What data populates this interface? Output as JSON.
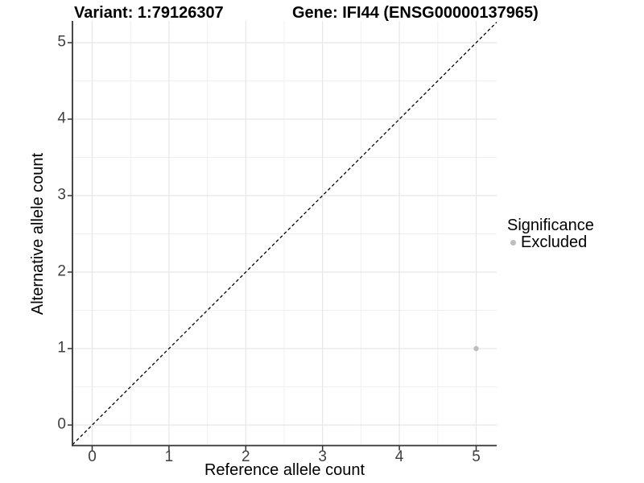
{
  "chart_data": {
    "type": "scatter",
    "titles": [
      "Variant: 1:79126307",
      "Gene: IFI44 (ENSG00000137965)"
    ],
    "xlabel": "Reference allele count",
    "ylabel": "Alternative allele count",
    "xticks": [
      0,
      1,
      2,
      3,
      4,
      5
    ],
    "yticks": [
      0,
      1,
      2,
      3,
      4,
      5
    ],
    "xlim": [
      -0.26,
      5.27
    ],
    "ylim": [
      -0.26,
      5.28
    ],
    "grid": "major and minor (0.5 step) light gray gridlines on white panel",
    "identity_line": {
      "slope": 1,
      "intercept": 0,
      "style": "dashed",
      "color": "#000000"
    },
    "series": [
      {
        "name": "Excluded",
        "color": "#bdbdbd",
        "point_radius": 3.2,
        "points": [
          [
            5,
            1
          ]
        ]
      }
    ],
    "legend": {
      "title": "Significance",
      "position": "right",
      "entries": [
        {
          "label": "Excluded",
          "color": "#bdbdbd"
        }
      ]
    }
  },
  "style_colors": {
    "grid_major": "#e6e6e6",
    "grid_minor": "#f0f0f0",
    "axis_line": "#333333",
    "tick_mark": "#333333",
    "tick_label": "#404040"
  }
}
